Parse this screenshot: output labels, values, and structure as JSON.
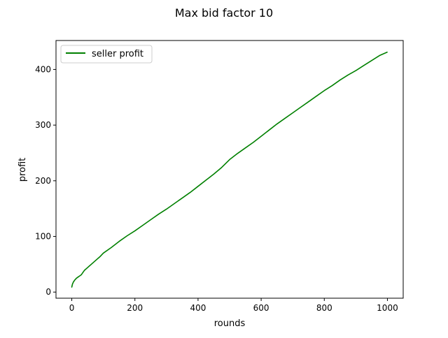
{
  "chart_data": {
    "type": "line",
    "title": "Max bid factor 10",
    "xlabel": "rounds",
    "ylabel": "profit",
    "xlim": [
      -50,
      1050
    ],
    "ylim": [
      -11,
      452
    ],
    "xticks": [
      0,
      200,
      400,
      600,
      800,
      1000
    ],
    "yticks": [
      0,
      100,
      200,
      300,
      400
    ],
    "grid": false,
    "legend": {
      "placement": "top-left"
    },
    "series": [
      {
        "name": "seller profit",
        "color": "#008000",
        "x": [
          0,
          2,
          5,
          10,
          15,
          20,
          25,
          30,
          35,
          40,
          50,
          60,
          70,
          80,
          90,
          100,
          125,
          150,
          175,
          200,
          225,
          250,
          275,
          300,
          325,
          350,
          375,
          400,
          425,
          450,
          475,
          500,
          525,
          550,
          575,
          600,
          625,
          650,
          675,
          700,
          725,
          750,
          775,
          800,
          825,
          850,
          875,
          900,
          925,
          950,
          975,
          999
        ],
        "y": [
          9,
          14,
          18,
          22,
          25,
          27,
          29,
          31,
          35,
          39,
          44,
          49,
          54,
          59,
          64,
          70,
          80,
          91,
          101,
          110,
          120,
          130,
          140,
          149,
          159,
          169,
          179,
          190,
          201,
          212,
          224,
          238,
          249,
          259,
          269,
          280,
          291,
          302,
          312,
          322,
          332,
          342,
          352,
          362,
          371,
          381,
          390,
          398,
          407,
          416,
          425,
          431
        ]
      }
    ]
  }
}
